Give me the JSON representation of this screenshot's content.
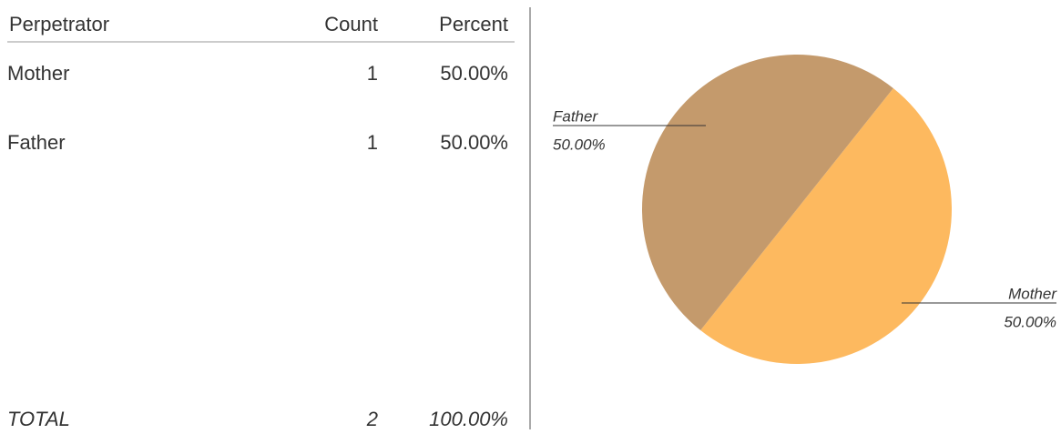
{
  "table": {
    "header": [
      "Perpetrator",
      "Count",
      "Percent"
    ],
    "rows": [
      [
        "Mother",
        1,
        "50.00%"
      ],
      [
        "Father",
        1,
        "50.00%"
      ]
    ],
    "total": [
      "TOTAL",
      2,
      "100.00%"
    ]
  },
  "chart_data": {
    "type": "pie",
    "categories": [
      "Mother",
      "Father"
    ],
    "values": [
      50,
      50
    ],
    "value_labels": [
      "50.00%",
      "50.00%"
    ],
    "colors": [
      "#fdb95f",
      "#c49a6c"
    ]
  }
}
